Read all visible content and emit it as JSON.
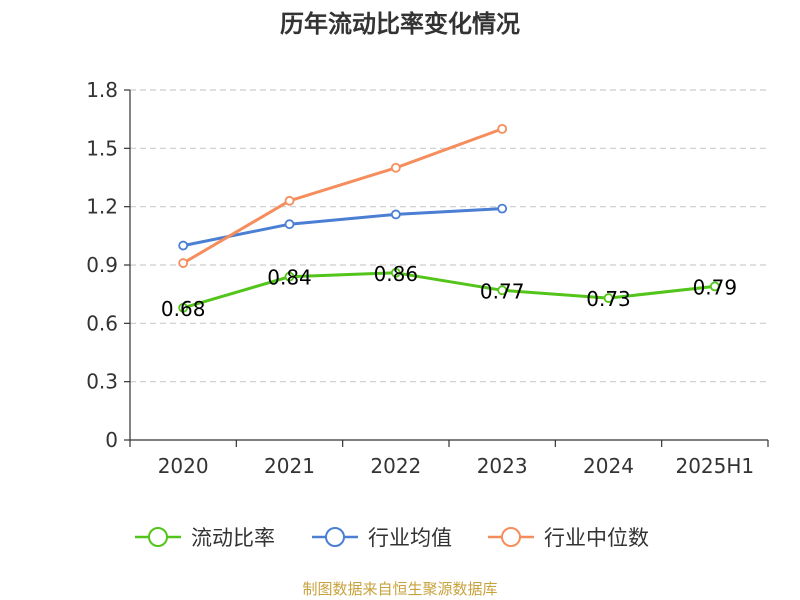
{
  "chart_data": {
    "type": "line",
    "title": "历年流动比率变化情况",
    "categories": [
      "2020",
      "2021",
      "2022",
      "2023",
      "2024",
      "2025H1"
    ],
    "y_ticks": [
      "0",
      "0.3",
      "0.6",
      "0.9",
      "1.2",
      "1.5",
      "1.8"
    ],
    "ylim": [
      0,
      1.8
    ],
    "grid": "horizontal dashed",
    "legend_position": "bottom",
    "series": [
      {
        "name": "流动比率",
        "color": "#52c41a",
        "values": [
          0.68,
          0.84,
          0.86,
          0.77,
          0.73,
          0.79
        ],
        "labels": [
          "0.68",
          "0.84",
          "0.86",
          "0.77",
          "0.73",
          "0.79"
        ]
      },
      {
        "name": "行业均值",
        "color": "#4a7fd4",
        "values": [
          1.0,
          1.11,
          1.16,
          1.19,
          null,
          null
        ]
      },
      {
        "name": "行业中位数",
        "color": "#f58d5c",
        "values": [
          0.91,
          1.23,
          1.4,
          1.6,
          null,
          null
        ]
      }
    ]
  },
  "footer": {
    "source": "制图数据来自恒生聚源数据库"
  }
}
